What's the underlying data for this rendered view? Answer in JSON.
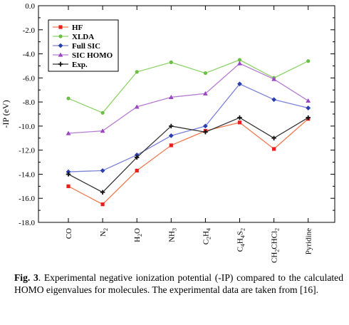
{
  "chart_data": {
    "type": "line",
    "title": "",
    "xlabel": "",
    "ylabel": "-IP (eV)",
    "ylim": [
      -18.0,
      0.0
    ],
    "yticks": [
      "0.0",
      "-2.0",
      "-4.0",
      "-6.0",
      "-8.0",
      "-10.0",
      "-12.0",
      "-14.0",
      "-16.0",
      "-18.0"
    ],
    "ytick_values": [
      0,
      -2,
      -4,
      -6,
      -8,
      -10,
      -12,
      -14,
      -16,
      -18
    ],
    "categories": [
      "CO",
      "N2",
      "H2O",
      "NH3",
      "C2H4",
      "C4H4S2",
      "CH2CHCl2",
      "Pyridine"
    ],
    "category_labels": [
      [
        {
          "t": "CO",
          "s": false
        }
      ],
      [
        {
          "t": "N",
          "s": false
        },
        {
          "t": "2",
          "s": true
        }
      ],
      [
        {
          "t": "H",
          "s": false
        },
        {
          "t": "2",
          "s": true
        },
        {
          "t": "O",
          "s": false
        }
      ],
      [
        {
          "t": "NH",
          "s": false
        },
        {
          "t": "3",
          "s": true
        }
      ],
      [
        {
          "t": "C",
          "s": false
        },
        {
          "t": "2",
          "s": true
        },
        {
          "t": "H",
          "s": false
        },
        {
          "t": "4",
          "s": true
        }
      ],
      [
        {
          "t": "C",
          "s": false
        },
        {
          "t": "4",
          "s": true
        },
        {
          "t": "H",
          "s": false
        },
        {
          "t": "4",
          "s": true
        },
        {
          "t": "S",
          "s": false
        },
        {
          "t": "2",
          "s": true
        }
      ],
      [
        {
          "t": "CH",
          "s": false
        },
        {
          "t": "2",
          "s": true
        },
        {
          "t": "CHCl",
          "s": false
        },
        {
          "t": "2",
          "s": true
        }
      ],
      [
        {
          "t": "Pyridine",
          "s": false
        }
      ]
    ],
    "series": [
      {
        "name": "HF",
        "color": "#ee7a50",
        "marker_color": "#e8201c",
        "marker": "square",
        "values": [
          -15.0,
          -16.5,
          -13.7,
          -11.6,
          -10.4,
          -9.7,
          -11.9,
          -9.4
        ]
      },
      {
        "name": "XLDA",
        "color": "#8ed26a",
        "marker_color": "#6cbf45",
        "marker": "circle",
        "values": [
          -7.7,
          -8.9,
          -5.5,
          -4.7,
          -5.6,
          -4.5,
          -6.0,
          -4.6
        ]
      },
      {
        "name": "Full SIC",
        "color": "#7c82d8",
        "marker_color": "#2a3fae",
        "marker": "diamond",
        "values": [
          -13.8,
          -13.7,
          -12.4,
          -10.8,
          -10.0,
          -6.5,
          -7.8,
          -8.5
        ]
      },
      {
        "name": "SIC HOMO",
        "color": "#b47cd0",
        "marker_color": "#9a45c2",
        "marker": "triangle",
        "values": [
          -10.6,
          -10.4,
          -8.4,
          -7.6,
          -7.3,
          -4.8,
          -6.1,
          -7.9
        ]
      },
      {
        "name": "Exp.",
        "color": "#333333",
        "marker_color": "#111111",
        "marker": "plus",
        "values": [
          -14.0,
          -15.5,
          -12.6,
          -10.0,
          -10.5,
          -9.3,
          -11.0,
          -9.3
        ]
      }
    ],
    "legend_position": "top-left",
    "grid": false
  },
  "caption": {
    "label": "Fig. 3",
    "text": ". Experimental negative ionization potential (-IP) compared to the calculated HOMO eigenvalues for molecules. The experimental data are taken from [16]."
  }
}
